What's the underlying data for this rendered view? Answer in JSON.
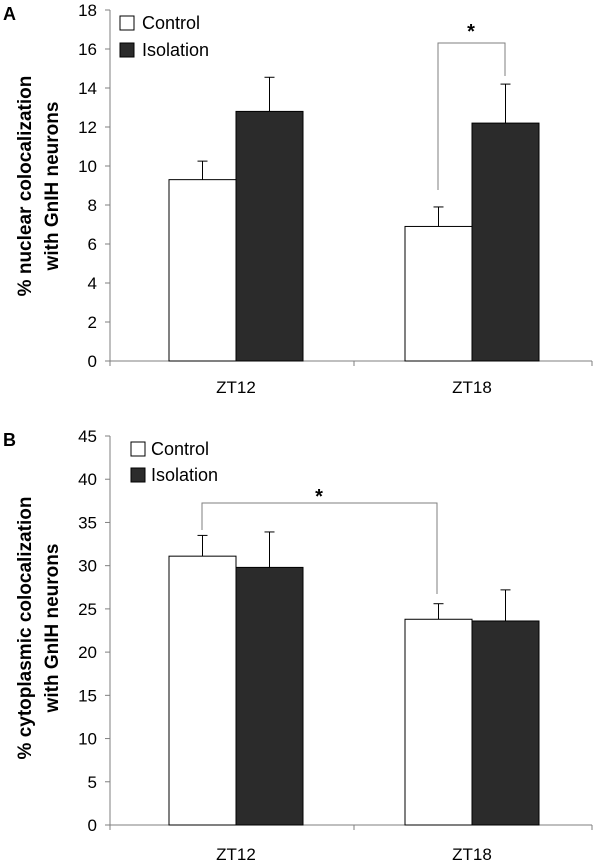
{
  "colors": {
    "control": "#ffffff",
    "isolation": "#2b2b2b",
    "stroke": "#000000",
    "axis": "#7f7f7f"
  },
  "chart_data": [
    {
      "panel": "A",
      "type": "bar",
      "categories": [
        "ZT12",
        "ZT18"
      ],
      "series": [
        {
          "name": "Control",
          "values": [
            9.3,
            6.9
          ],
          "errors": [
            0.95,
            1.0
          ]
        },
        {
          "name": "Isolation",
          "values": [
            12.8,
            12.2
          ],
          "errors": [
            1.75,
            2.0
          ]
        }
      ],
      "ylabel_lines": [
        "% nuclear colocalization",
        "with GnIH neurons"
      ],
      "ylim": [
        0,
        18
      ],
      "yticks": [
        0,
        2,
        4,
        6,
        8,
        10,
        12,
        14,
        16,
        18
      ],
      "legend_position": "top-left",
      "significance": {
        "label": "*",
        "category": "ZT18",
        "between": "Control vs Isolation"
      }
    },
    {
      "panel": "B",
      "type": "bar",
      "categories": [
        "ZT12",
        "ZT18"
      ],
      "series": [
        {
          "name": "Control",
          "values": [
            31.1,
            23.8
          ],
          "errors": [
            2.4,
            1.8
          ]
        },
        {
          "name": "Isolation",
          "values": [
            29.8,
            23.6
          ],
          "errors": [
            4.1,
            3.6
          ]
        }
      ],
      "ylabel_lines": [
        "% cytoplasmic colocalization",
        "with GnIH neurons"
      ],
      "ylim": [
        0,
        45
      ],
      "yticks": [
        0,
        5,
        10,
        15,
        20,
        25,
        30,
        35,
        40,
        45
      ],
      "legend_position": "top-left",
      "significance": {
        "label": "*",
        "series": "Control",
        "between": "ZT12 vs ZT18"
      }
    }
  ]
}
